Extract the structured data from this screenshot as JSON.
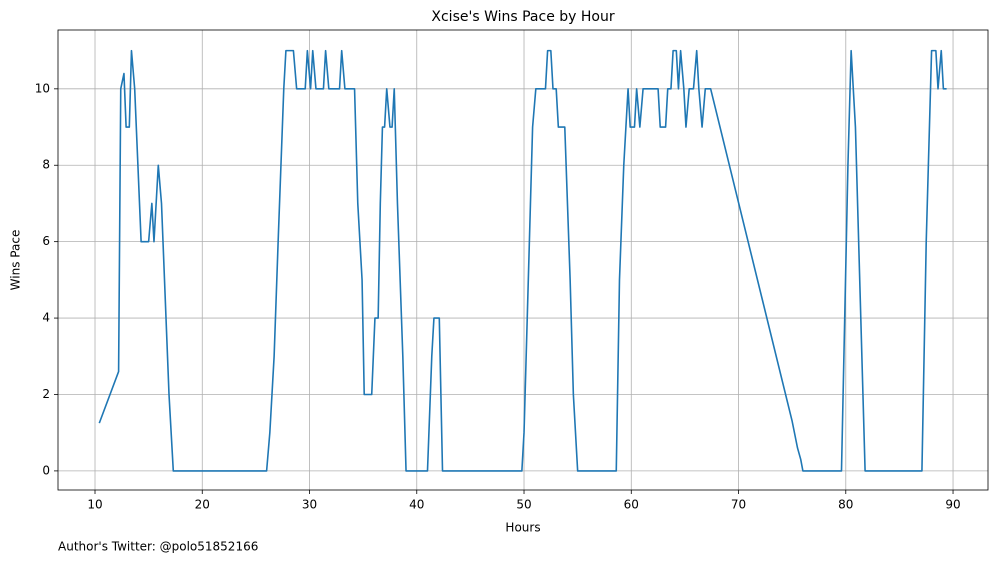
{
  "chart_data": {
    "type": "line",
    "title": "Xcise's Wins Pace by Hour",
    "x_label": "Hours",
    "y_label": "Wins Pace",
    "annotation": "Author's Twitter: @polo51852166",
    "color": "#1f77b4",
    "grid": true,
    "xlim": [
      6.55,
      93.26
    ],
    "ylim": [
      -0.5,
      11.54
    ],
    "xticks": [
      10,
      20,
      30,
      40,
      50,
      60,
      70,
      80,
      90
    ],
    "yticks": [
      0,
      2,
      4,
      6,
      8,
      10
    ],
    "x": [
      10.4,
      12.2,
      12.4,
      12.7,
      12.9,
      13.2,
      13.4,
      13.7,
      14.3,
      15,
      15.3,
      15.5,
      15.9,
      16.2,
      16.9,
      17.3,
      26,
      26.3,
      26.7,
      27.1,
      27.6,
      27.8,
      28.5,
      28.8,
      29.6,
      29.8,
      30.1,
      30.3,
      30.6,
      31.3,
      31.5,
      31.8,
      32.8,
      33,
      33.3,
      34.2,
      34.5,
      34.9,
      35.1,
      35.8,
      36.1,
      36.4,
      36.6,
      36.8,
      37,
      37.2,
      37.5,
      37.7,
      37.9,
      38.2,
      38.7,
      39,
      41,
      41.4,
      41.6,
      42.1,
      42.4,
      49.8,
      50,
      50.3,
      50.6,
      50.8,
      51.1,
      52,
      52.2,
      52.5,
      52.7,
      53,
      53.2,
      53.8,
      54.3,
      54.6,
      55,
      58.6,
      58.9,
      59.3,
      59.5,
      59.7,
      59.9,
      60.3,
      60.5,
      60.8,
      61.1,
      62.2,
      62.5,
      62.7,
      63.2,
      63.4,
      63.7,
      63.9,
      64.2,
      64.4,
      64.6,
      64.9,
      65.1,
      65.4,
      65.8,
      66.1,
      66.3,
      66.6,
      66.9,
      67.4,
      75,
      75.5,
      75.8,
      76,
      79.6,
      79.9,
      80.2,
      80.5,
      80.9,
      81.4,
      81.8,
      87.1,
      87.5,
      87.8,
      88,
      88.4,
      88.6,
      88.9,
      89.1,
      89.4
    ],
    "values": [
      1.25,
      2.6,
      10,
      10.4,
      9,
      9,
      11,
      10,
      6,
      6,
      7,
      6,
      8,
      7,
      2,
      0,
      0,
      1,
      3,
      6.2,
      10,
      11,
      11,
      10,
      10,
      11,
      10,
      11,
      10,
      10,
      11,
      10,
      10,
      11,
      10,
      10,
      7,
      5,
      2,
      2,
      4,
      4,
      7,
      9,
      9,
      10,
      9,
      9,
      10,
      7,
      3,
      0,
      0,
      3,
      4,
      4,
      0,
      0,
      1,
      4,
      7,
      9,
      10,
      10,
      11,
      11,
      10,
      10,
      9,
      9,
      5,
      2,
      0,
      0,
      5,
      8,
      9,
      10,
      9,
      9,
      10,
      9,
      10,
      10,
      10,
      9,
      9,
      10,
      10,
      11,
      11,
      10,
      11,
      10,
      9,
      10,
      10,
      11,
      10,
      9,
      10,
      10,
      1.3,
      0.6,
      0.3,
      0,
      0,
      4,
      8,
      11,
      9,
      4,
      0,
      0,
      6,
      9,
      11,
      11,
      10,
      11,
      10,
      10
    ]
  }
}
